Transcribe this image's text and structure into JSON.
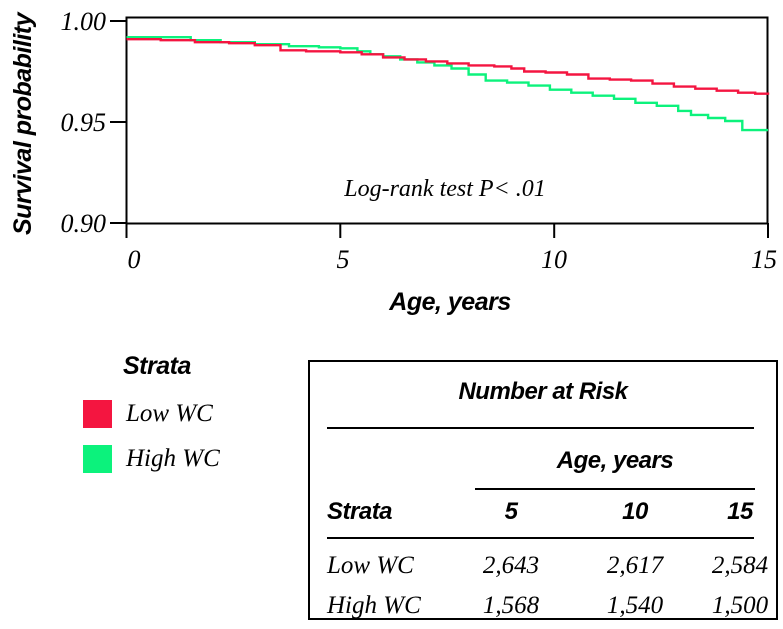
{
  "figure": {
    "y_axis_label": "Survival probability",
    "x_axis_label": "Age, years",
    "annotation": "Log-rank test P< .01"
  },
  "legend": {
    "title": "Strata",
    "items": [
      {
        "label": "Low WC",
        "color": "#f41540"
      },
      {
        "label": "High WC",
        "color": "#0cf27c"
      }
    ]
  },
  "risk_table": {
    "title": "Number at Risk",
    "col_group_label": "Age, years",
    "strata_header": "Strata",
    "columns": [
      "5",
      "10",
      "15"
    ],
    "rows": [
      {
        "label": "Low WC",
        "values": [
          "2,643",
          "2,617",
          "2,584"
        ]
      },
      {
        "label": "High WC",
        "values": [
          "1,568",
          "1,540",
          "1,500"
        ]
      }
    ]
  },
  "chart_data": {
    "type": "line",
    "subtype": "kaplan-meier-step",
    "title": "",
    "xlabel": "Age, years",
    "ylabel": "Survival probability",
    "xlim": [
      0,
      15
    ],
    "ylim": [
      0.9,
      1.0
    ],
    "x_ticks": [
      0,
      5,
      10,
      15
    ],
    "x_tick_labels": [
      "0",
      "5",
      "10",
      "15"
    ],
    "y_ticks": [
      1.0,
      0.95,
      0.9
    ],
    "y_tick_labels": [
      "1.00",
      "0.95",
      "0.90"
    ],
    "grid": false,
    "legend_position": "bottom-left",
    "annotation": "Log-rank test P< .01",
    "series": [
      {
        "name": "Low WC",
        "color": "#f41540",
        "points": [
          [
            0,
            0.991
          ],
          [
            0.8,
            0.9905
          ],
          [
            1.6,
            0.9895
          ],
          [
            2.4,
            0.989
          ],
          [
            3.0,
            0.988
          ],
          [
            3.6,
            0.9855
          ],
          [
            4.2,
            0.985
          ],
          [
            5.0,
            0.9845
          ],
          [
            5.5,
            0.9835
          ],
          [
            6.0,
            0.982
          ],
          [
            6.5,
            0.981
          ],
          [
            7.0,
            0.98
          ],
          [
            7.5,
            0.979
          ],
          [
            8.0,
            0.978
          ],
          [
            8.6,
            0.9775
          ],
          [
            9.0,
            0.9765
          ],
          [
            9.3,
            0.975
          ],
          [
            9.8,
            0.9745
          ],
          [
            10.3,
            0.9735
          ],
          [
            10.8,
            0.9715
          ],
          [
            11.3,
            0.971
          ],
          [
            11.8,
            0.9705
          ],
          [
            12.3,
            0.969
          ],
          [
            12.8,
            0.9675
          ],
          [
            13.3,
            0.9665
          ],
          [
            13.8,
            0.9655
          ],
          [
            14.3,
            0.9645
          ],
          [
            14.7,
            0.964
          ],
          [
            15,
            0.9635
          ]
        ]
      },
      {
        "name": "High WC",
        "color": "#0cf27c",
        "points": [
          [
            0,
            0.992
          ],
          [
            1.4,
            0.992
          ],
          [
            1.5,
            0.9905
          ],
          [
            2.2,
            0.9895
          ],
          [
            3.0,
            0.9885
          ],
          [
            3.8,
            0.9875
          ],
          [
            4.5,
            0.987
          ],
          [
            5.0,
            0.9865
          ],
          [
            5.4,
            0.985
          ],
          [
            5.7,
            0.9835
          ],
          [
            6.0,
            0.9825
          ],
          [
            6.4,
            0.981
          ],
          [
            6.8,
            0.9795
          ],
          [
            7.2,
            0.978
          ],
          [
            7.6,
            0.9765
          ],
          [
            8.0,
            0.9735
          ],
          [
            8.4,
            0.9705
          ],
          [
            8.9,
            0.9695
          ],
          [
            9.4,
            0.968
          ],
          [
            9.9,
            0.966
          ],
          [
            10.4,
            0.9645
          ],
          [
            10.9,
            0.963
          ],
          [
            11.4,
            0.9615
          ],
          [
            11.9,
            0.9595
          ],
          [
            12.4,
            0.958
          ],
          [
            12.9,
            0.9555
          ],
          [
            13.2,
            0.9535
          ],
          [
            13.6,
            0.952
          ],
          [
            14.0,
            0.9505
          ],
          [
            14.4,
            0.946
          ],
          [
            15,
            0.946
          ]
        ]
      }
    ]
  }
}
